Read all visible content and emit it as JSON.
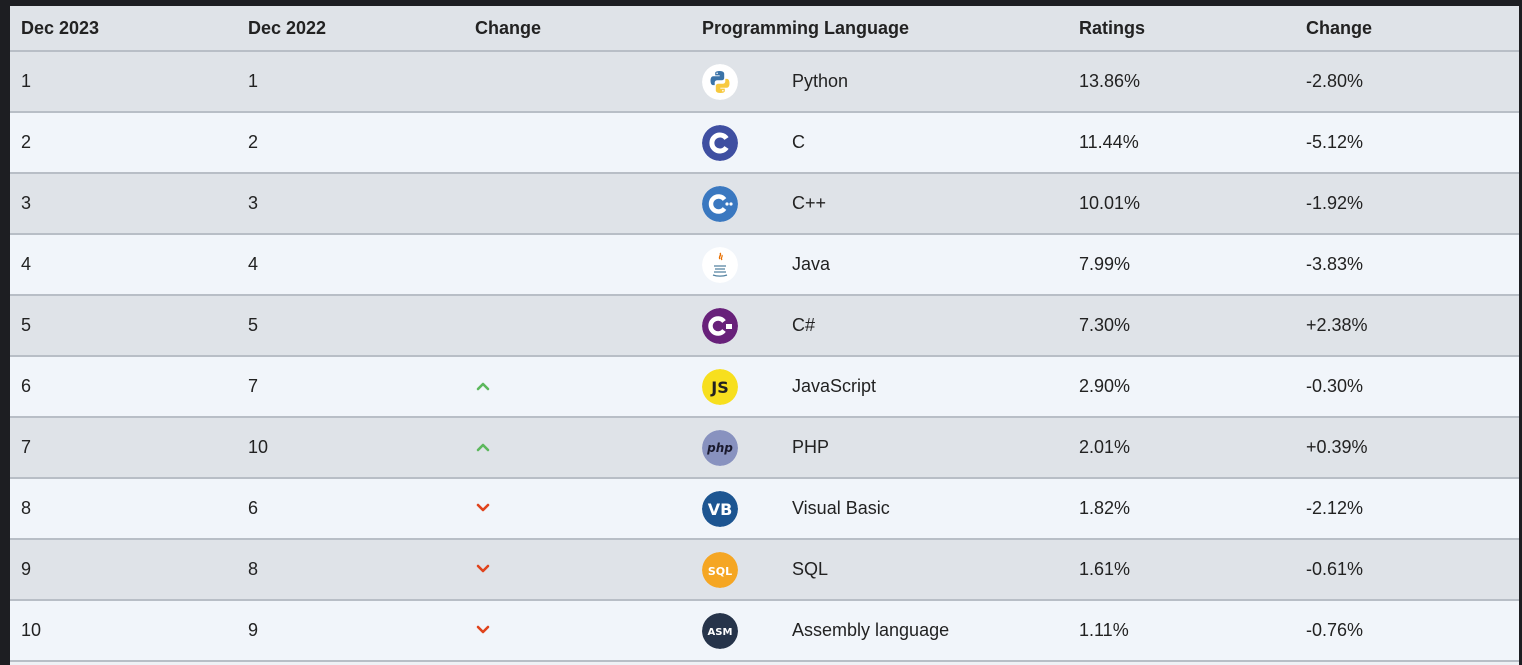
{
  "table": {
    "headers": [
      "Dec 2023",
      "Dec 2022",
      "Change",
      "Programming Language",
      "Ratings",
      "Change"
    ],
    "rows": [
      {
        "rank2023": "1",
        "rank2022": "1",
        "trend": "none",
        "logo_icon": "python-logo-icon",
        "language": "Python",
        "rating": "13.86%",
        "change": "-2.80%"
      },
      {
        "rank2023": "2",
        "rank2022": "2",
        "trend": "none",
        "logo_icon": "c-logo-icon",
        "language": "C",
        "rating": "11.44%",
        "change": "-5.12%"
      },
      {
        "rank2023": "3",
        "rank2022": "3",
        "trend": "none",
        "logo_icon": "cpp-logo-icon",
        "language": "C++",
        "rating": "10.01%",
        "change": "-1.92%"
      },
      {
        "rank2023": "4",
        "rank2022": "4",
        "trend": "none",
        "logo_icon": "java-logo-icon",
        "language": "Java",
        "rating": "7.99%",
        "change": "-3.83%"
      },
      {
        "rank2023": "5",
        "rank2022": "5",
        "trend": "none",
        "logo_icon": "csharp-logo-icon",
        "language": "C#",
        "rating": "7.30%",
        "change": "+2.38%"
      },
      {
        "rank2023": "6",
        "rank2022": "7",
        "trend": "up",
        "logo_icon": "javascript-logo-icon",
        "language": "JavaScript",
        "rating": "2.90%",
        "change": "-0.30%"
      },
      {
        "rank2023": "7",
        "rank2022": "10",
        "trend": "up",
        "logo_icon": "php-logo-icon",
        "language": "PHP",
        "rating": "2.01%",
        "change": "+0.39%"
      },
      {
        "rank2023": "8",
        "rank2022": "6",
        "trend": "down",
        "logo_icon": "visual-basic-logo-icon",
        "language": "Visual Basic",
        "rating": "1.82%",
        "change": "-2.12%"
      },
      {
        "rank2023": "9",
        "rank2022": "8",
        "trend": "down",
        "logo_icon": "sql-logo-icon",
        "language": "SQL",
        "rating": "1.61%",
        "change": "-0.61%"
      },
      {
        "rank2023": "10",
        "rank2022": "9",
        "trend": "down",
        "logo_icon": "assembly-logo-icon",
        "language": "Assembly language",
        "rating": "1.11%",
        "change": "-0.76%"
      }
    ]
  },
  "logos": {
    "js_text": "JS",
    "php_text": "php",
    "vb_text": "VB",
    "sql_text": "SQL",
    "asm_text": "ASM"
  },
  "colors": {
    "up_arrow": "#5cb85c",
    "down_arrow": "#e0431c",
    "c_logo": "#3f4fa1",
    "cpp_logo": "#3a78c0",
    "csharp_logo": "#68217a",
    "js_logo": "#f7df1e",
    "php_logo": "#8892bf",
    "vb_logo": "#1d5591",
    "sql_logo": "#f5a623",
    "asm_logo": "#26344a"
  }
}
